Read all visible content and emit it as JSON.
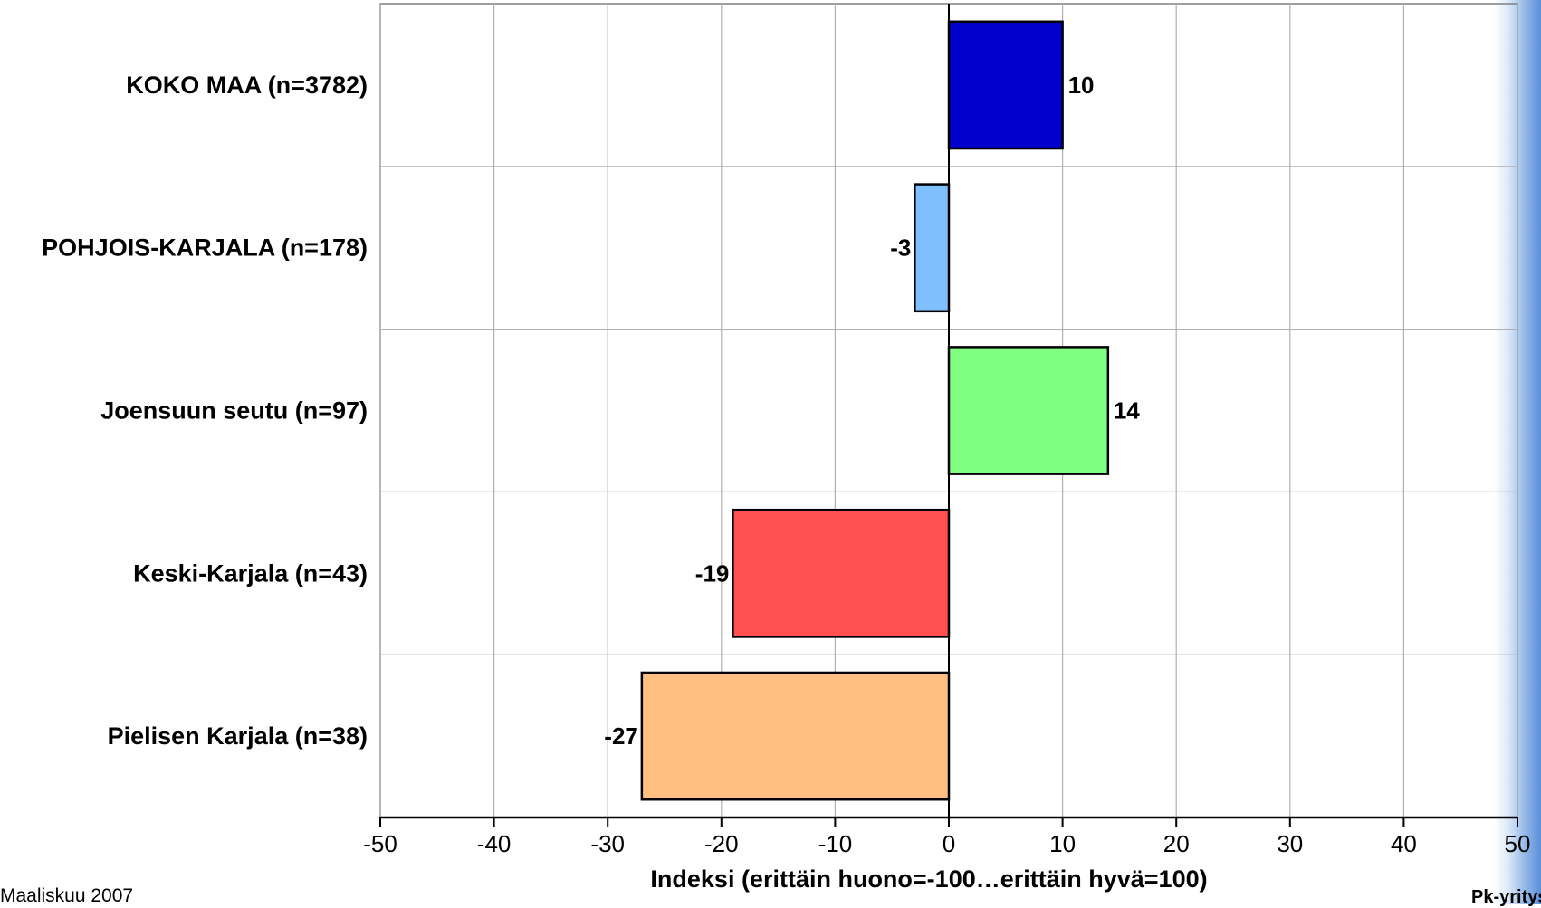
{
  "chart_data": {
    "type": "bar",
    "orientation": "horizontal",
    "categories": [
      "KOKO MAA (n=3782)",
      "POHJOIS-KARJALA (n=178)",
      "Joensuun seutu (n=97)",
      "Keski-Karjala (n=43)",
      "Pielisen Karjala (n=38)"
    ],
    "values": [
      10,
      -3,
      14,
      -19,
      -27
    ],
    "value_labels": [
      "10",
      "-3",
      "14",
      "-19",
      "-27"
    ],
    "colors": [
      "#0000CC",
      "#80BFFF",
      "#80FF80",
      "#FF5050",
      "#FFBF80"
    ],
    "xlabel": "Indeksi (erittäin huono=-100…erittäin hyvä=100)",
    "ylabel": "",
    "title": "",
    "xlim": [
      -50,
      50
    ],
    "xticks": [
      "-50",
      "-40",
      "-30",
      "-20",
      "-10",
      "0",
      "10",
      "20",
      "30",
      "40",
      "50"
    ],
    "grid": true,
    "legend": "none"
  },
  "footer": {
    "date": "Maaliskuu 2007",
    "brand": "Pk-yritys"
  },
  "colors": {
    "accent_band": "#5b8fd6"
  }
}
